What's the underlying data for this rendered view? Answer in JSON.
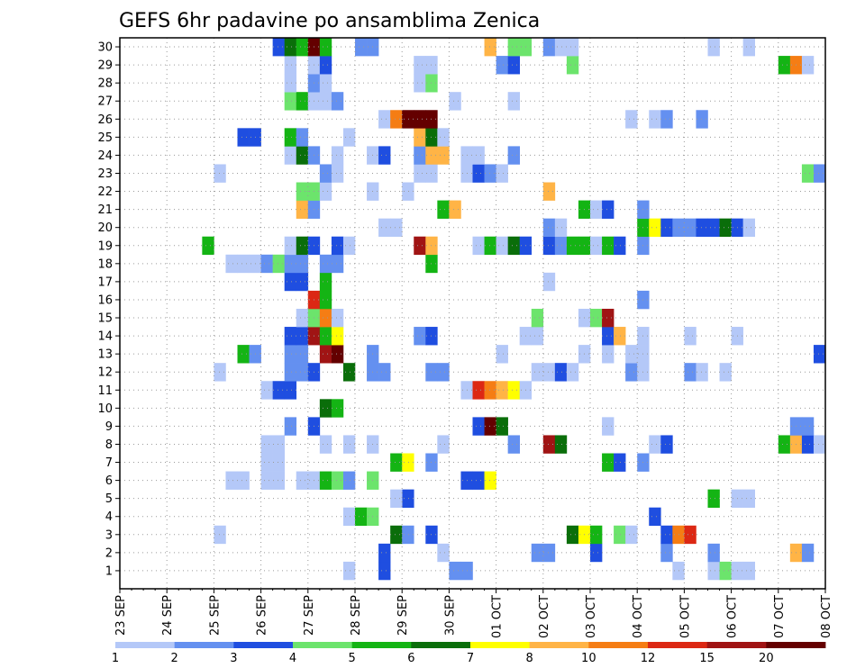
{
  "chart_data": {
    "type": "heatmap",
    "title": "GEFS 6hr padavine po ansamblima Zenica",
    "xlabel": "",
    "ylabel": "",
    "x_tick_labels": [
      "23 SEP",
      "24 SEP",
      "25 SEP",
      "26 SEP",
      "27 SEP",
      "28 SEP",
      "29 SEP",
      "30 SEP",
      "01 OCT",
      "02 OCT",
      "03 OCT",
      "04 OCT",
      "05 OCT",
      "06 OCT",
      "07 OCT",
      "08 OCT"
    ],
    "y_tick_labels": [
      "1",
      "2",
      "3",
      "4",
      "5",
      "6",
      "7",
      "8",
      "9",
      "10",
      "11",
      "12",
      "13",
      "14",
      "15",
      "16",
      "17",
      "18",
      "19",
      "20",
      "21",
      "22",
      "23",
      "24",
      "25",
      "26",
      "27",
      "28",
      "29",
      "30"
    ],
    "time_steps_per_day": 4,
    "n_time_steps": 60,
    "n_members": 30,
    "grid": true,
    "colorbar": {
      "position": "bottom",
      "colors": [
        "#b4c8f8",
        "#6490f0",
        "#1f4ee0",
        "#6ce46c",
        "#14b414",
        "#0a6e0a",
        "#ffff00",
        "#ffb446",
        "#f57d14",
        "#dc2814",
        "#a01414",
        "#640000"
      ],
      "labels": [
        "1",
        "2",
        "3",
        "4",
        "5",
        "6",
        "7",
        "8",
        "10",
        "12",
        "15",
        "20"
      ]
    },
    "cells": [
      [
        1,
        20,
        1
      ],
      [
        1,
        48,
        1
      ],
      [
        1,
        23,
        3
      ],
      [
        1,
        29,
        2
      ],
      [
        1,
        30,
        2
      ],
      [
        1,
        51,
        1
      ],
      [
        1,
        52,
        4
      ],
      [
        1,
        53,
        1
      ],
      [
        1,
        54,
        1
      ],
      [
        2,
        23,
        3
      ],
      [
        2,
        28,
        1
      ],
      [
        2,
        47,
        2
      ],
      [
        2,
        51,
        2
      ],
      [
        2,
        58,
        8
      ],
      [
        2,
        59,
        2
      ],
      [
        2,
        36,
        2
      ],
      [
        2,
        37,
        2
      ],
      [
        2,
        41,
        3
      ],
      [
        3,
        9,
        1
      ],
      [
        3,
        24,
        6
      ],
      [
        3,
        25,
        2
      ],
      [
        3,
        27,
        3
      ],
      [
        3,
        39,
        6
      ],
      [
        3,
        40,
        7
      ],
      [
        3,
        41,
        5
      ],
      [
        3,
        43,
        4
      ],
      [
        3,
        44,
        1
      ],
      [
        3,
        47,
        3
      ],
      [
        3,
        48,
        9
      ],
      [
        3,
        49,
        10
      ],
      [
        4,
        20,
        1
      ],
      [
        4,
        21,
        5
      ],
      [
        4,
        22,
        4
      ],
      [
        4,
        46,
        3
      ],
      [
        5,
        25,
        3
      ],
      [
        5,
        24,
        1
      ],
      [
        5,
        51,
        5
      ],
      [
        5,
        53,
        1
      ],
      [
        5,
        54,
        1
      ],
      [
        6,
        10,
        1
      ],
      [
        6,
        11,
        1
      ],
      [
        6,
        13,
        1
      ],
      [
        6,
        14,
        1
      ],
      [
        6,
        16,
        1
      ],
      [
        6,
        17,
        1
      ],
      [
        6,
        18,
        5
      ],
      [
        6,
        19,
        4
      ],
      [
        6,
        20,
        2
      ],
      [
        6,
        22,
        4
      ],
      [
        6,
        30,
        3
      ],
      [
        6,
        31,
        3
      ],
      [
        6,
        32,
        7
      ],
      [
        7,
        13,
        1
      ],
      [
        7,
        14,
        1
      ],
      [
        7,
        24,
        5
      ],
      [
        7,
        25,
        7
      ],
      [
        7,
        27,
        2
      ],
      [
        7,
        42,
        5
      ],
      [
        7,
        43,
        3
      ],
      [
        7,
        45,
        2
      ],
      [
        8,
        13,
        1
      ],
      [
        8,
        14,
        1
      ],
      [
        8,
        18,
        1
      ],
      [
        8,
        20,
        1
      ],
      [
        8,
        22,
        1
      ],
      [
        8,
        28,
        1
      ],
      [
        8,
        34,
        2
      ],
      [
        8,
        37,
        11
      ],
      [
        8,
        38,
        6
      ],
      [
        8,
        46,
        1
      ],
      [
        8,
        47,
        3
      ],
      [
        8,
        57,
        5
      ],
      [
        8,
        58,
        8
      ],
      [
        8,
        59,
        3
      ],
      [
        8,
        60,
        1
      ],
      [
        9,
        15,
        2
      ],
      [
        9,
        17,
        3
      ],
      [
        9,
        31,
        3
      ],
      [
        9,
        32,
        12
      ],
      [
        9,
        33,
        6
      ],
      [
        9,
        42,
        1
      ],
      [
        9,
        58,
        2
      ],
      [
        9,
        59,
        2
      ],
      [
        10,
        18,
        6
      ],
      [
        10,
        19,
        5
      ],
      [
        11,
        13,
        1
      ],
      [
        11,
        14,
        3
      ],
      [
        11,
        15,
        3
      ],
      [
        11,
        30,
        1
      ],
      [
        11,
        31,
        10
      ],
      [
        11,
        32,
        9
      ],
      [
        11,
        33,
        8
      ],
      [
        11,
        34,
        7
      ],
      [
        11,
        35,
        1
      ],
      [
        12,
        9,
        1
      ],
      [
        12,
        15,
        2
      ],
      [
        12,
        16,
        2
      ],
      [
        12,
        17,
        3
      ],
      [
        12,
        20,
        6
      ],
      [
        12,
        22,
        2
      ],
      [
        12,
        23,
        2
      ],
      [
        12,
        27,
        2
      ],
      [
        12,
        28,
        2
      ],
      [
        12,
        36,
        1
      ],
      [
        12,
        37,
        1
      ],
      [
        12,
        38,
        3
      ],
      [
        12,
        39,
        1
      ],
      [
        12,
        44,
        2
      ],
      [
        12,
        45,
        1
      ],
      [
        12,
        49,
        2
      ],
      [
        12,
        50,
        1
      ],
      [
        12,
        52,
        1
      ],
      [
        13,
        11,
        5
      ],
      [
        13,
        12,
        2
      ],
      [
        13,
        15,
        2
      ],
      [
        13,
        16,
        2
      ],
      [
        13,
        18,
        11
      ],
      [
        13,
        19,
        12
      ],
      [
        13,
        22,
        2
      ],
      [
        13,
        33,
        1
      ],
      [
        13,
        40,
        1
      ],
      [
        13,
        42,
        1
      ],
      [
        13,
        44,
        1
      ],
      [
        13,
        45,
        1
      ],
      [
        13,
        60,
        3
      ],
      [
        14,
        15,
        3
      ],
      [
        14,
        16,
        3
      ],
      [
        14,
        17,
        11
      ],
      [
        14,
        18,
        5
      ],
      [
        14,
        19,
        7
      ],
      [
        14,
        26,
        2
      ],
      [
        14,
        27,
        3
      ],
      [
        14,
        35,
        1
      ],
      [
        14,
        36,
        1
      ],
      [
        14,
        42,
        3
      ],
      [
        14,
        43,
        8
      ],
      [
        14,
        45,
        1
      ],
      [
        14,
        49,
        1
      ],
      [
        14,
        53,
        1
      ],
      [
        15,
        16,
        1
      ],
      [
        15,
        17,
        4
      ],
      [
        15,
        18,
        9
      ],
      [
        15,
        19,
        1
      ],
      [
        15,
        36,
        4
      ],
      [
        15,
        40,
        1
      ],
      [
        15,
        41,
        4
      ],
      [
        15,
        42,
        11
      ],
      [
        16,
        17,
        10
      ],
      [
        16,
        18,
        5
      ],
      [
        16,
        45,
        2
      ],
      [
        17,
        15,
        3
      ],
      [
        17,
        16,
        3
      ],
      [
        17,
        18,
        5
      ],
      [
        17,
        37,
        1
      ],
      [
        18,
        10,
        1
      ],
      [
        18,
        11,
        1
      ],
      [
        18,
        12,
        1
      ],
      [
        18,
        13,
        2
      ],
      [
        18,
        14,
        4
      ],
      [
        18,
        15,
        2
      ],
      [
        18,
        16,
        2
      ],
      [
        18,
        18,
        2
      ],
      [
        18,
        19,
        2
      ],
      [
        18,
        27,
        5
      ],
      [
        19,
        8,
        5
      ],
      [
        19,
        15,
        1
      ],
      [
        19,
        16,
        6
      ],
      [
        19,
        17,
        3
      ],
      [
        19,
        19,
        3
      ],
      [
        19,
        20,
        1
      ],
      [
        19,
        26,
        11
      ],
      [
        19,
        27,
        8
      ],
      [
        19,
        31,
        1
      ],
      [
        19,
        32,
        5
      ],
      [
        19,
        33,
        1
      ],
      [
        19,
        34,
        6
      ],
      [
        19,
        35,
        3
      ],
      [
        19,
        37,
        3
      ],
      [
        19,
        38,
        2
      ],
      [
        19,
        39,
        5
      ],
      [
        19,
        40,
        5
      ],
      [
        19,
        41,
        1
      ],
      [
        19,
        42,
        5
      ],
      [
        19,
        43,
        3
      ],
      [
        19,
        45,
        2
      ],
      [
        20,
        23,
        1
      ],
      [
        20,
        24,
        1
      ],
      [
        20,
        37,
        2
      ],
      [
        20,
        38,
        1
      ],
      [
        20,
        45,
        5
      ],
      [
        20,
        46,
        7
      ],
      [
        20,
        47,
        3
      ],
      [
        20,
        48,
        2
      ],
      [
        20,
        49,
        2
      ],
      [
        20,
        50,
        3
      ],
      [
        20,
        51,
        3
      ],
      [
        20,
        52,
        6
      ],
      [
        20,
        53,
        3
      ],
      [
        20,
        54,
        1
      ],
      [
        21,
        16,
        8
      ],
      [
        21,
        17,
        2
      ],
      [
        21,
        28,
        5
      ],
      [
        21,
        29,
        8
      ],
      [
        21,
        40,
        5
      ],
      [
        21,
        41,
        1
      ],
      [
        21,
        42,
        3
      ],
      [
        21,
        45,
        2
      ],
      [
        22,
        16,
        4
      ],
      [
        22,
        17,
        4
      ],
      [
        22,
        18,
        1
      ],
      [
        22,
        22,
        1
      ],
      [
        22,
        25,
        1
      ],
      [
        22,
        37,
        8
      ],
      [
        23,
        9,
        1
      ],
      [
        23,
        18,
        2
      ],
      [
        23,
        19,
        1
      ],
      [
        23,
        26,
        1
      ],
      [
        23,
        27,
        1
      ],
      [
        23,
        30,
        1
      ],
      [
        23,
        31,
        3
      ],
      [
        23,
        32,
        2
      ],
      [
        23,
        33,
        1
      ],
      [
        23,
        59,
        4
      ],
      [
        23,
        60,
        2
      ],
      [
        24,
        15,
        1
      ],
      [
        24,
        16,
        6
      ],
      [
        24,
        17,
        2
      ],
      [
        24,
        19,
        1
      ],
      [
        24,
        22,
        1
      ],
      [
        24,
        23,
        3
      ],
      [
        24,
        26,
        2
      ],
      [
        24,
        27,
        8
      ],
      [
        24,
        28,
        8
      ],
      [
        24,
        30,
        1
      ],
      [
        24,
        31,
        1
      ],
      [
        24,
        34,
        2
      ],
      [
        25,
        11,
        3
      ],
      [
        25,
        12,
        3
      ],
      [
        25,
        15,
        5
      ],
      [
        25,
        16,
        2
      ],
      [
        25,
        20,
        1
      ],
      [
        25,
        26,
        8
      ],
      [
        25,
        27,
        6
      ],
      [
        25,
        28,
        1
      ],
      [
        26,
        23,
        1
      ],
      [
        26,
        24,
        9
      ],
      [
        26,
        25,
        12
      ],
      [
        26,
        26,
        12
      ],
      [
        26,
        27,
        12
      ],
      [
        26,
        44,
        1
      ],
      [
        26,
        46,
        1
      ],
      [
        26,
        47,
        2
      ],
      [
        26,
        50,
        2
      ],
      [
        27,
        15,
        4
      ],
      [
        27,
        16,
        5
      ],
      [
        27,
        17,
        1
      ],
      [
        27,
        18,
        1
      ],
      [
        27,
        19,
        2
      ],
      [
        27,
        29,
        1
      ],
      [
        27,
        34,
        1
      ],
      [
        28,
        15,
        1
      ],
      [
        28,
        17,
        2
      ],
      [
        28,
        18,
        1
      ],
      [
        28,
        26,
        1
      ],
      [
        28,
        27,
        4
      ],
      [
        29,
        15,
        1
      ],
      [
        29,
        17,
        1
      ],
      [
        29,
        18,
        3
      ],
      [
        29,
        26,
        1
      ],
      [
        29,
        27,
        1
      ],
      [
        29,
        33,
        2
      ],
      [
        29,
        34,
        3
      ],
      [
        29,
        39,
        4
      ],
      [
        29,
        57,
        5
      ],
      [
        29,
        58,
        9
      ],
      [
        29,
        59,
        1
      ],
      [
        30,
        14,
        3
      ],
      [
        30,
        15,
        6
      ],
      [
        30,
        16,
        5
      ],
      [
        30,
        17,
        12
      ],
      [
        30,
        18,
        5
      ],
      [
        30,
        21,
        2
      ],
      [
        30,
        22,
        2
      ],
      [
        30,
        32,
        8
      ],
      [
        30,
        34,
        4
      ],
      [
        30,
        35,
        4
      ],
      [
        30,
        37,
        2
      ],
      [
        30,
        38,
        1
      ],
      [
        30,
        39,
        1
      ],
      [
        30,
        51,
        1
      ],
      [
        30,
        54,
        1
      ]
    ],
    "cells_format": "[member, time_step (1-based, 6h), color_class (1-based index into colorbar.colors)]"
  }
}
